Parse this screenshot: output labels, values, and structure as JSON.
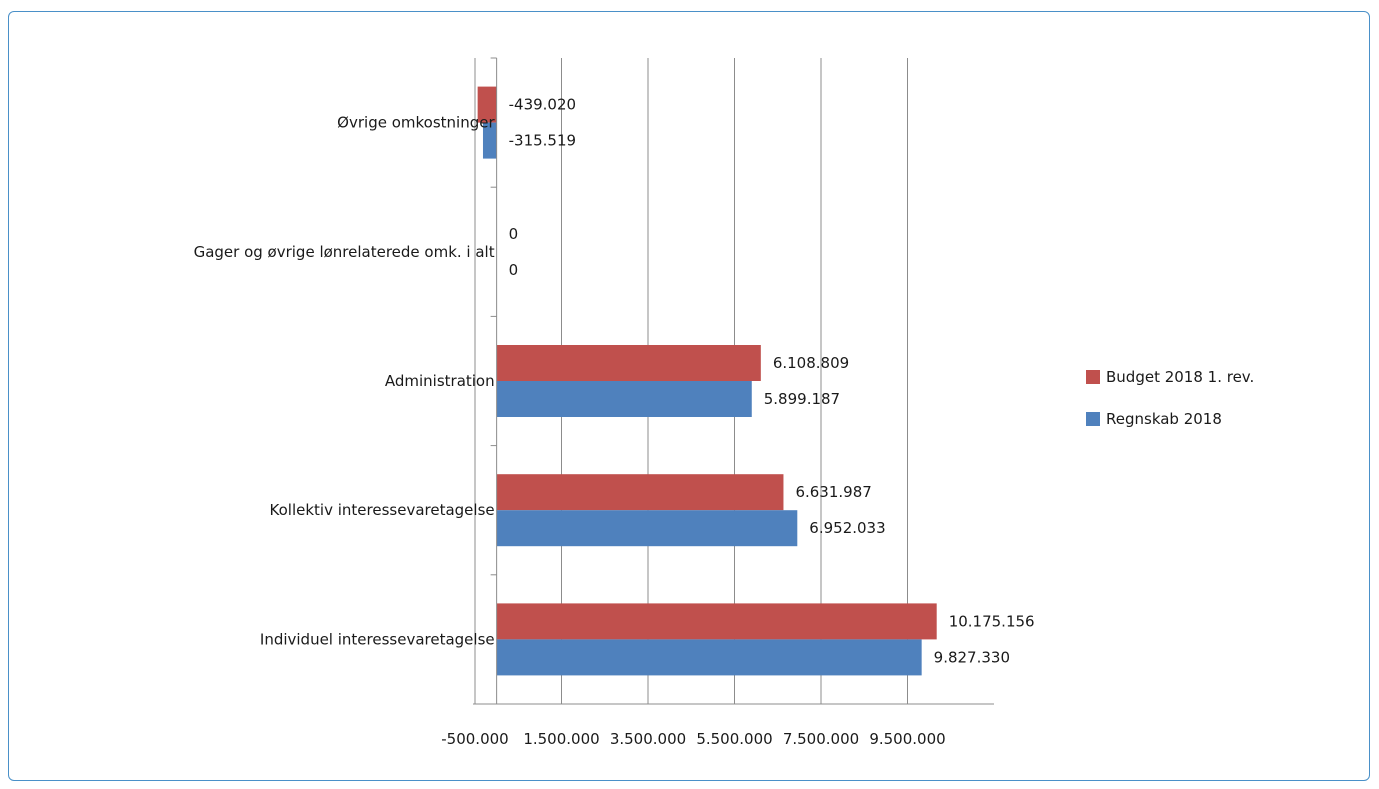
{
  "chart_data": {
    "type": "bar",
    "orientation": "horizontal",
    "categories": [
      "Øvrige omkostninger",
      "Gager og øvrige lønrelaterede omk. i alt",
      "Administration",
      "Kollektiv interessevaretagelse",
      "Individuel interessevaretagelse"
    ],
    "series": [
      {
        "name": "Budget 2018 1. rev.",
        "color": "#c0504d",
        "values": [
          -439020,
          0,
          6108809,
          6631987,
          10175156
        ],
        "labels": [
          "-439.020",
          "0",
          "6.108.809",
          "6.631.987",
          "10.175.156"
        ]
      },
      {
        "name": "Regnskab 2018",
        "color": "#4f81bd",
        "values": [
          -315519,
          0,
          5899187,
          6952033,
          9827330
        ],
        "labels": [
          "-315.519",
          "0",
          "5.899.187",
          "6.952.033",
          "9.827.330"
        ]
      }
    ],
    "x_ticks": [
      -500000,
      1500000,
      3500000,
      5500000,
      7500000,
      9500000
    ],
    "x_tick_labels": [
      "-500.000",
      "1.500.000",
      "3.500.000",
      "5.500.000",
      "7.500.000",
      "9.500.000"
    ],
    "xlim": [
      -500000,
      11500000
    ],
    "grid": true,
    "legend_position": "right"
  }
}
